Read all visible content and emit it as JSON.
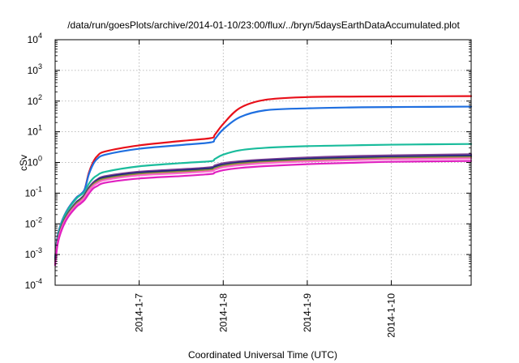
{
  "chart_data": {
    "type": "line",
    "title": "/data/run/goesPlots/archive/2014-01-10/23:00/flux/../bryn/5daysEarthDataAccumulated.plot",
    "xlabel": "Coordinated Universal Time (UTC)",
    "ylabel": "cSv",
    "yscale": "log",
    "ylim_exponents": [
      -4,
      4
    ],
    "xlim_days": [
      6.0,
      10.95
    ],
    "grid": true,
    "x_ticks": [
      {
        "label": "2014-1-7",
        "day": 7
      },
      {
        "label": "2014-1-8",
        "day": 8
      },
      {
        "label": "2014-1-9",
        "day": 9
      },
      {
        "label": "2014-1-10",
        "day": 10
      }
    ],
    "y_ticks": [
      {
        "base": "10",
        "exp": "-4"
      },
      {
        "base": "10",
        "exp": "-3"
      },
      {
        "base": "10",
        "exp": "-2"
      },
      {
        "base": "10",
        "exp": "-1"
      },
      {
        "base": "10",
        "exp": "0"
      },
      {
        "base": "10",
        "exp": "1"
      },
      {
        "base": "10",
        "exp": "2"
      },
      {
        "base": "10",
        "exp": "3"
      },
      {
        "base": "10",
        "exp": "4"
      }
    ],
    "series": [
      {
        "color": "#e8101a",
        "x": [
          6.0,
          6.03,
          6.08,
          6.15,
          6.25,
          6.3,
          6.35,
          6.4,
          6.45,
          6.5,
          6.6,
          7.0,
          7.5,
          7.85,
          7.9,
          8.0,
          8.2,
          8.5,
          9.0,
          9.5,
          10.0,
          10.95
        ],
        "y": [
          0.0008,
          0.004,
          0.012,
          0.03,
          0.07,
          0.09,
          0.13,
          0.45,
          1.0,
          1.6,
          2.3,
          3.6,
          5.0,
          6.2,
          8.0,
          18,
          60,
          110,
          135,
          140,
          142,
          145
        ]
      },
      {
        "color": "#1f6fe0",
        "x": [
          6.0,
          6.03,
          6.08,
          6.15,
          6.25,
          6.3,
          6.35,
          6.4,
          6.45,
          6.5,
          6.6,
          7.0,
          7.5,
          7.85,
          7.9,
          8.0,
          8.2,
          8.5,
          9.0,
          9.5,
          10.0,
          10.95
        ],
        "y": [
          0.0008,
          0.004,
          0.012,
          0.03,
          0.07,
          0.09,
          0.13,
          0.4,
          0.85,
          1.3,
          1.8,
          2.8,
          3.7,
          4.5,
          5.8,
          12,
          30,
          50,
          58,
          62,
          64,
          66
        ]
      },
      {
        "color": "#1abc9c",
        "x": [
          6.0,
          6.03,
          6.08,
          6.15,
          6.25,
          6.3,
          6.35,
          6.4,
          6.45,
          6.5,
          6.6,
          7.0,
          7.5,
          7.85,
          7.9,
          8.0,
          8.2,
          8.5,
          9.0,
          9.5,
          10.0,
          10.95
        ],
        "y": [
          0.0007,
          0.0035,
          0.011,
          0.028,
          0.065,
          0.085,
          0.11,
          0.2,
          0.3,
          0.38,
          0.5,
          0.75,
          0.95,
          1.1,
          1.3,
          1.8,
          2.5,
          3.0,
          3.4,
          3.6,
          3.8,
          4.0
        ]
      },
      {
        "color": "#7b3f93",
        "x": [
          6.0,
          6.03,
          6.08,
          6.15,
          6.25,
          6.3,
          6.35,
          6.4,
          6.45,
          6.5,
          6.6,
          7.0,
          7.5,
          7.85,
          7.9,
          8.0,
          8.2,
          8.5,
          9.0,
          9.5,
          10.0,
          10.95
        ],
        "y": [
          0.0006,
          0.003,
          0.009,
          0.022,
          0.05,
          0.065,
          0.09,
          0.15,
          0.22,
          0.28,
          0.36,
          0.5,
          0.6,
          0.7,
          0.8,
          0.95,
          1.1,
          1.25,
          1.45,
          1.6,
          1.7,
          1.85
        ]
      },
      {
        "color": "#1a237e",
        "x": [
          6.0,
          6.03,
          6.08,
          6.15,
          6.25,
          6.3,
          6.35,
          6.4,
          6.45,
          6.5,
          6.6,
          7.0,
          7.5,
          7.85,
          7.9,
          8.0,
          8.2,
          8.5,
          9.0,
          9.5,
          10.0,
          10.95
        ],
        "y": [
          0.0006,
          0.0029,
          0.0088,
          0.021,
          0.048,
          0.062,
          0.085,
          0.14,
          0.2,
          0.26,
          0.33,
          0.46,
          0.55,
          0.64,
          0.72,
          0.85,
          1.0,
          1.15,
          1.32,
          1.42,
          1.52,
          1.65
        ]
      },
      {
        "color": "#8e8e3a",
        "x": [
          6.0,
          6.03,
          6.08,
          6.15,
          6.25,
          6.3,
          6.35,
          6.4,
          6.45,
          6.5,
          6.6,
          7.0,
          7.5,
          7.85,
          7.9,
          8.0,
          8.2,
          8.5,
          9.0,
          9.5,
          10.0,
          10.95
        ],
        "y": [
          0.00055,
          0.0027,
          0.0082,
          0.02,
          0.045,
          0.058,
          0.08,
          0.13,
          0.19,
          0.24,
          0.3,
          0.42,
          0.5,
          0.58,
          0.65,
          0.78,
          0.92,
          1.05,
          1.2,
          1.3,
          1.4,
          1.5
        ]
      },
      {
        "color": "#ff66cc",
        "x": [
          6.0,
          6.03,
          6.08,
          6.15,
          6.25,
          6.3,
          6.35,
          6.4,
          6.45,
          6.5,
          6.6,
          7.0,
          7.5,
          7.85,
          7.9,
          8.0,
          8.2,
          8.5,
          9.0,
          9.5,
          10.0,
          10.95
        ],
        "y": [
          0.0005,
          0.0025,
          0.0075,
          0.018,
          0.04,
          0.052,
          0.072,
          0.12,
          0.17,
          0.21,
          0.27,
          0.38,
          0.45,
          0.52,
          0.58,
          0.7,
          0.82,
          0.95,
          1.08,
          1.18,
          1.27,
          1.36
        ]
      },
      {
        "color": "#e020c0",
        "x": [
          6.0,
          6.03,
          6.08,
          6.15,
          6.25,
          6.3,
          6.35,
          6.4,
          6.45,
          6.5,
          6.6,
          7.0,
          7.5,
          7.85,
          7.9,
          8.0,
          8.2,
          8.5,
          9.0,
          9.5,
          10.0,
          10.95
        ],
        "y": [
          0.00045,
          0.0022,
          0.0065,
          0.016,
          0.035,
          0.045,
          0.06,
          0.095,
          0.14,
          0.17,
          0.22,
          0.3,
          0.36,
          0.42,
          0.47,
          0.56,
          0.66,
          0.76,
          0.88,
          0.97,
          1.05,
          1.12
        ]
      }
    ]
  }
}
